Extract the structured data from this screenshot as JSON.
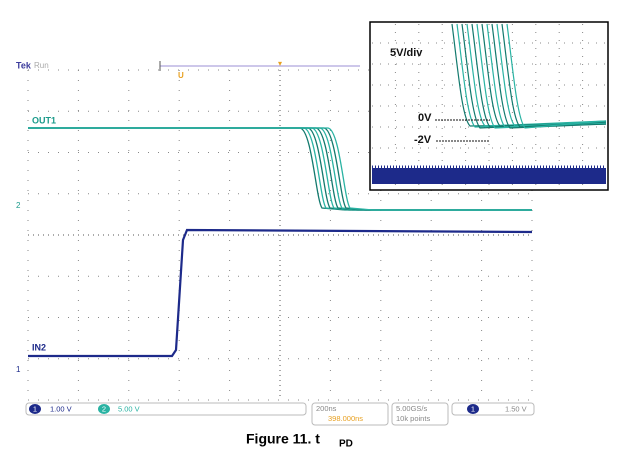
{
  "scope": {
    "brand": "Tek",
    "state": "Run",
    "ch1_label": "OUT1",
    "ch2_label": "IN2",
    "ch1_marker": "2",
    "ch2_marker": "1",
    "status": {
      "ch1_num": "1",
      "ch1_scale": "1.00 V",
      "ch2_num": "2",
      "ch2_scale": "5.00 V",
      "timebase": "200ns",
      "position": "398.000ns",
      "sample_rate": "5.00GS/s",
      "record": "10k points",
      "trigger_ch": "1",
      "trigger_level": "1.50 V"
    }
  },
  "inset": {
    "scale": "5V/div",
    "zero": "0V",
    "minus": "-2V"
  },
  "caption": {
    "text": "Figure 11. t",
    "subscript": "PD"
  }
}
